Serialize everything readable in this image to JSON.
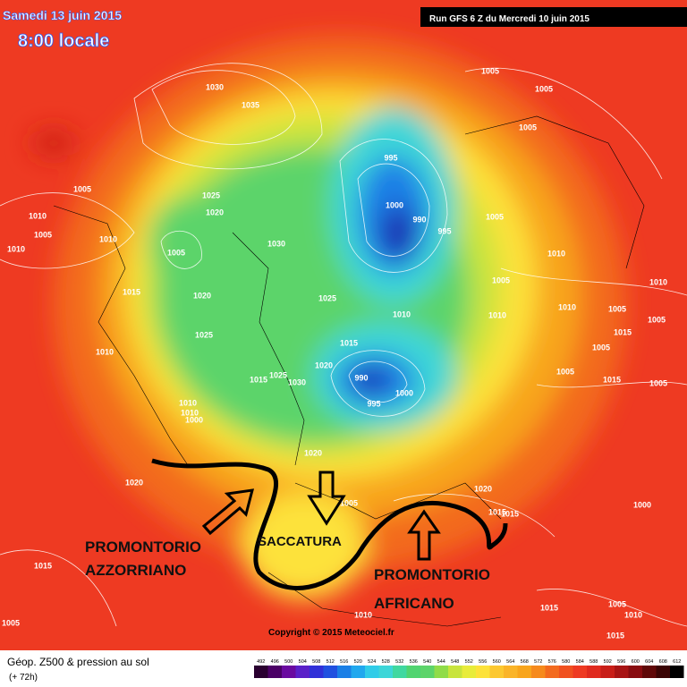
{
  "header": {
    "valid": "Samedi 13 juin 2015",
    "time": "8:00 locale",
    "run": "Run GFS 6 Z du Mercredi 10 juin 2015"
  },
  "annotations": {
    "azores": [
      "PROMONTORIO",
      "AZZORRIANO"
    ],
    "trough": "SACCATURA",
    "africa": [
      "PROMONTORIO",
      "AFRICANO"
    ]
  },
  "copyright": "Copyright © 2015 Meteociel.fr",
  "footer": {
    "title": "Géop. Z500 & pression au sol",
    "lead": "(+ 72h)"
  },
  "colorbar": {
    "labels": [
      492,
      496,
      500,
      504,
      508,
      512,
      516,
      520,
      524,
      528,
      532,
      536,
      540,
      544,
      548,
      552,
      556,
      560,
      564,
      568,
      572,
      576,
      580,
      584,
      588,
      592,
      596,
      600,
      604,
      608,
      612
    ]
  },
  "isobar_labels": [
    "1030",
    "1035",
    "1005",
    "1005",
    "1005",
    "995",
    "1005",
    "1025",
    "1020",
    "1000",
    "990",
    "995",
    "1010",
    "1005",
    "1010",
    "1010",
    "1030",
    "1005",
    "1005",
    "1010",
    "1015",
    "1020",
    "1025",
    "1005",
    "1010",
    "1010",
    "1010",
    "1010",
    "1005",
    "1005",
    "1025",
    "1015",
    "1005",
    "1015",
    "1010",
    "1020",
    "990",
    "1000",
    "1005",
    "1015",
    "1005",
    "1025",
    "1030",
    "1015",
    "995",
    "1010",
    "1010",
    "1000",
    "1020",
    "1020",
    "1015",
    "1015",
    "1005",
    "1020",
    "1000",
    "1015",
    "1005",
    "1010",
    "1015",
    "1005",
    "1010",
    "1015"
  ]
}
